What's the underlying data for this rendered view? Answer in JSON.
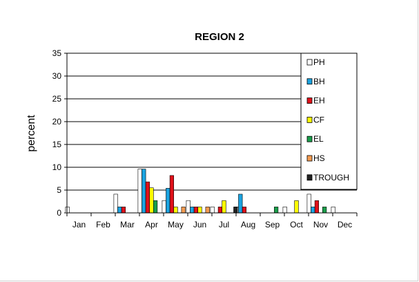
{
  "chart_data": {
    "type": "bar",
    "title": "REGION 2",
    "xlabel": "",
    "ylabel": "percent",
    "ylim": [
      0,
      35
    ],
    "yticks": [
      0,
      5,
      10,
      15,
      20,
      25,
      30,
      35
    ],
    "grid": "horizontal",
    "legend_position": "right",
    "categories": [
      "Jan",
      "Feb",
      "Mar",
      "Apr",
      "May",
      "Jun",
      "Jul",
      "Aug",
      "Sep",
      "Oct",
      "Nov",
      "Dec"
    ],
    "series": [
      {
        "name": "PH",
        "color": "#ffffff",
        "values": [
          1.3,
          0,
          4.1,
          9.6,
          2.7,
          2.7,
          1.3,
          1.3,
          0,
          1.3,
          4.1,
          1.3
        ]
      },
      {
        "name": "BH",
        "color": "#1aa3e0",
        "values": [
          0,
          0,
          1.3,
          9.6,
          5.4,
          1.3,
          0,
          4.1,
          0,
          0,
          1.3,
          0
        ]
      },
      {
        "name": "EH",
        "color": "#e0111a",
        "values": [
          0,
          0,
          1.3,
          6.8,
          8.2,
          1.3,
          1.3,
          1.3,
          0,
          0,
          2.7,
          0
        ]
      },
      {
        "name": "CF",
        "color": "#ffff00",
        "values": [
          0,
          0,
          0,
          5.5,
          1.3,
          1.3,
          2.7,
          0,
          0,
          2.7,
          0,
          0
        ]
      },
      {
        "name": "EL",
        "color": "#1a9e4a",
        "values": [
          0,
          0,
          0,
          2.7,
          0,
          0,
          0,
          0,
          1.3,
          0,
          1.3,
          0
        ]
      },
      {
        "name": "HS",
        "color": "#f49b50",
        "values": [
          0,
          0,
          0,
          0,
          1.3,
          1.3,
          0,
          0,
          0,
          0,
          0,
          0
        ]
      },
      {
        "name": "TROUGH",
        "color": "#222222",
        "values": [
          0,
          0,
          0,
          0,
          0,
          0,
          1.3,
          0,
          0,
          0,
          0,
          0
        ]
      }
    ]
  }
}
